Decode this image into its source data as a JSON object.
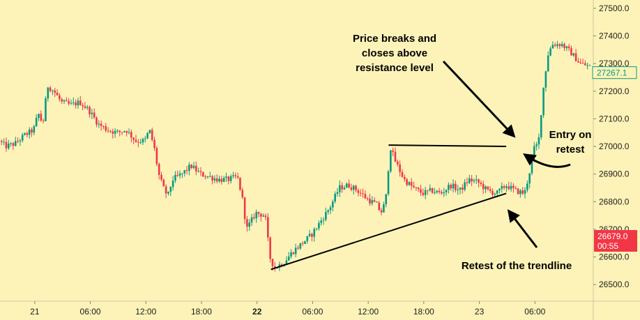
{
  "chart_data": {
    "type": "candlestick",
    "y_axis": {
      "ylim": [
        26440,
        27530
      ],
      "ticks": [
        "26500.0",
        "26600.0",
        "26700.0",
        "26800.0",
        "26900.0",
        "27000.0",
        "27100.0",
        "27200.0",
        "27300.0",
        "27400.0",
        "27500.0"
      ],
      "tick_values": [
        26500,
        26600,
        26700,
        26800,
        26900,
        27000,
        27100,
        27200,
        27300,
        27400,
        27500
      ]
    },
    "x_axis": {
      "ticks": [
        {
          "label": "21",
          "hour": 0,
          "bold": false
        },
        {
          "label": "06:00",
          "hour": 6,
          "bold": false
        },
        {
          "label": "12:00",
          "hour": 12,
          "bold": false
        },
        {
          "label": "18:00",
          "hour": 18,
          "bold": false
        },
        {
          "label": "22",
          "hour": 24,
          "bold": true
        },
        {
          "label": "06:00",
          "hour": 30,
          "bold": false
        },
        {
          "label": "12:00",
          "hour": 36,
          "bold": false
        },
        {
          "label": "18:00",
          "hour": 42,
          "bold": false
        },
        {
          "label": "23",
          "hour": 48,
          "bold": false
        },
        {
          "label": "06:00",
          "hour": 54,
          "bold": false
        }
      ],
      "xlim_hours": [
        -3.75,
        60.3
      ]
    },
    "up_color": "#089981",
    "down_color": "#f23645",
    "anchors": [
      [
        -3.7,
        27020
      ],
      [
        -3.0,
        27000
      ],
      [
        -2.0,
        27010
      ],
      [
        -1.0,
        27040
      ],
      [
        0.0,
        27060
      ],
      [
        0.5,
        27120
      ],
      [
        1.0,
        27080
      ],
      [
        1.5,
        27220
      ],
      [
        2.2,
        27200
      ],
      [
        3.0,
        27160
      ],
      [
        4.0,
        27150
      ],
      [
        5.0,
        27160
      ],
      [
        6.0,
        27130
      ],
      [
        7.0,
        27080
      ],
      [
        8.0,
        27060
      ],
      [
        9.0,
        27050
      ],
      [
        10.0,
        27060
      ],
      [
        11.0,
        27020
      ],
      [
        12.0,
        27020
      ],
      [
        12.5,
        27060
      ],
      [
        13.0,
        27000
      ],
      [
        13.5,
        26900
      ],
      [
        14.0,
        26850
      ],
      [
        14.5,
        26820
      ],
      [
        15.0,
        26880
      ],
      [
        16.0,
        26900
      ],
      [
        17.0,
        26930
      ],
      [
        18.0,
        26900
      ],
      [
        19.0,
        26890
      ],
      [
        20.0,
        26880
      ],
      [
        21.0,
        26880
      ],
      [
        22.0,
        26890
      ],
      [
        22.5,
        26820
      ],
      [
        23.0,
        26700
      ],
      [
        24.0,
        26760
      ],
      [
        25.0,
        26750
      ],
      [
        25.5,
        26600
      ],
      [
        26.0,
        26560
      ],
      [
        27.0,
        26580
      ],
      [
        28.0,
        26620
      ],
      [
        29.0,
        26650
      ],
      [
        30.0,
        26680
      ],
      [
        31.0,
        26730
      ],
      [
        32.0,
        26780
      ],
      [
        33.0,
        26850
      ],
      [
        34.0,
        26860
      ],
      [
        35.0,
        26840
      ],
      [
        36.0,
        26810
      ],
      [
        37.0,
        26790
      ],
      [
        37.5,
        26760
      ],
      [
        38.0,
        26800
      ],
      [
        38.5,
        27000
      ],
      [
        39.0,
        26950
      ],
      [
        40.0,
        26880
      ],
      [
        41.0,
        26850
      ],
      [
        42.0,
        26830
      ],
      [
        43.0,
        26840
      ],
      [
        44.0,
        26830
      ],
      [
        45.0,
        26860
      ],
      [
        46.0,
        26840
      ],
      [
        47.0,
        26880
      ],
      [
        48.0,
        26870
      ],
      [
        49.0,
        26840
      ],
      [
        50.0,
        26830
      ],
      [
        51.0,
        26860
      ],
      [
        52.0,
        26840
      ],
      [
        53.0,
        26830
      ],
      [
        53.5,
        26900
      ],
      [
        54.0,
        26990
      ],
      [
        54.5,
        27010
      ],
      [
        55.0,
        27200
      ],
      [
        55.5,
        27330
      ],
      [
        56.0,
        27370
      ],
      [
        57.0,
        27370
      ],
      [
        58.0,
        27340
      ],
      [
        59.0,
        27300
      ],
      [
        60.0,
        27290
      ],
      [
        61.0,
        27270
      ],
      [
        62.0,
        27260
      ],
      [
        63.0,
        27280
      ],
      [
        64.0,
        27267.1
      ]
    ],
    "current_price": {
      "value": "27267.1",
      "color": "#089981"
    },
    "countdown_badge": {
      "price": "26679.0",
      "time": "00:55",
      "color": "#f23645"
    },
    "resistance_line": {
      "x": [
        38.2,
        50.9
      ],
      "y": [
        27005,
        27000
      ]
    },
    "trendline": {
      "x": [
        25.5,
        50.9
      ],
      "y": [
        26555,
        26830
      ]
    },
    "annotations": [
      {
        "lines": [
          "Price breaks and",
          "closes above",
          "resistance level"
        ]
      },
      {
        "lines": [
          "Entry on",
          "retest"
        ]
      },
      {
        "lines": [
          "Retest of the trendline"
        ]
      }
    ]
  }
}
